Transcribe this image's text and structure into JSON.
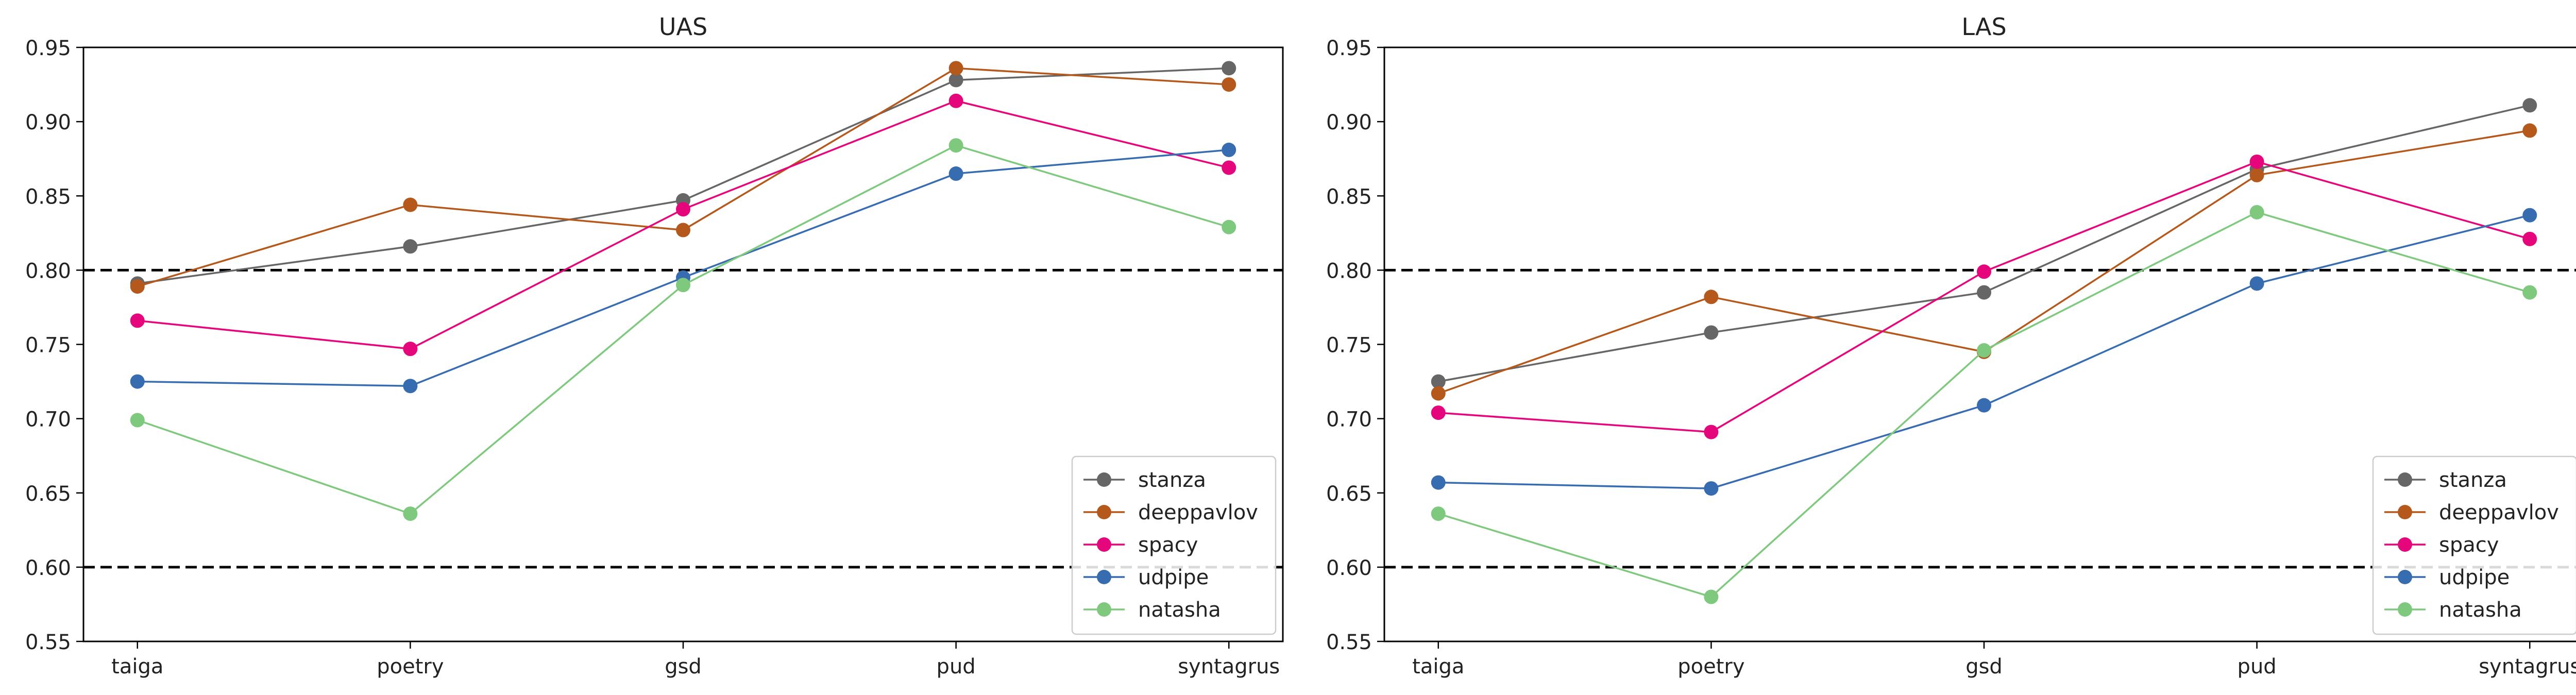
{
  "chart_data": [
    {
      "type": "line",
      "title": "UAS",
      "categories": [
        "taiga",
        "poetry",
        "gsd",
        "pud",
        "syntagrus"
      ],
      "ylim": [
        0.55,
        0.95
      ],
      "yticks": [
        "0.55",
        "0.60",
        "0.65",
        "0.70",
        "0.75",
        "0.80",
        "0.85",
        "0.90",
        "0.95"
      ],
      "grid": false,
      "reference_lines": [
        0.8,
        0.6
      ],
      "legend_position": "bottom-right",
      "series": [
        {
          "name": "stanza",
          "color": "#666666",
          "values": [
            0.791,
            0.816,
            0.847,
            0.928,
            0.936
          ]
        },
        {
          "name": "deeppavlov",
          "color": "#b5581b",
          "values": [
            0.789,
            0.844,
            0.827,
            0.936,
            0.925
          ]
        },
        {
          "name": "spacy",
          "color": "#e6067b",
          "values": [
            0.766,
            0.747,
            0.841,
            0.914,
            0.869
          ]
        },
        {
          "name": "udpipe",
          "color": "#386cb0",
          "values": [
            0.725,
            0.722,
            0.795,
            0.865,
            0.881
          ]
        },
        {
          "name": "natasha",
          "color": "#7fc97f",
          "values": [
            0.699,
            0.636,
            0.79,
            0.884,
            0.829
          ]
        }
      ]
    },
    {
      "type": "line",
      "title": "LAS",
      "categories": [
        "taiga",
        "poetry",
        "gsd",
        "pud",
        "syntagrus"
      ],
      "ylim": [
        0.55,
        0.95
      ],
      "yticks": [
        "0.55",
        "0.60",
        "0.65",
        "0.70",
        "0.75",
        "0.80",
        "0.85",
        "0.90",
        "0.95"
      ],
      "grid": false,
      "reference_lines": [
        0.8,
        0.6
      ],
      "legend_position": "bottom-right",
      "series": [
        {
          "name": "stanza",
          "color": "#666666",
          "values": [
            0.725,
            0.758,
            0.785,
            0.868,
            0.911
          ]
        },
        {
          "name": "deeppavlov",
          "color": "#b5581b",
          "values": [
            0.717,
            0.782,
            0.745,
            0.864,
            0.894
          ]
        },
        {
          "name": "spacy",
          "color": "#e6067b",
          "values": [
            0.704,
            0.691,
            0.799,
            0.873,
            0.821
          ]
        },
        {
          "name": "udpipe",
          "color": "#386cb0",
          "values": [
            0.657,
            0.653,
            0.709,
            0.791,
            0.837
          ]
        },
        {
          "name": "natasha",
          "color": "#7fc97f",
          "values": [
            0.636,
            0.58,
            0.746,
            0.839,
            0.785
          ]
        }
      ]
    }
  ]
}
